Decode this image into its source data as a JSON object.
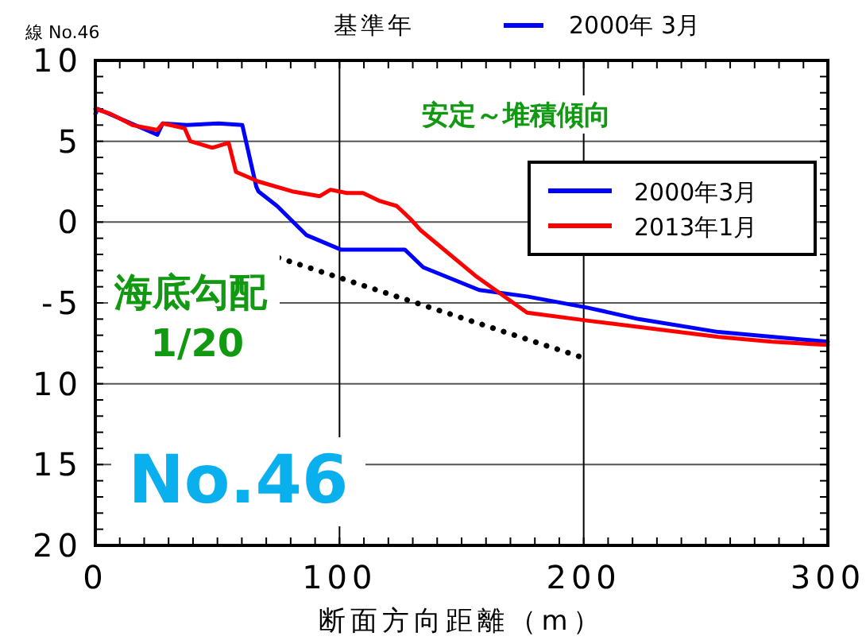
{
  "chart_data": {
    "type": "line",
    "title": "基準年",
    "subtitle": "2000年 3月",
    "xlabel": "断面方向距離（m）",
    "xlim": [
      0,
      300
    ],
    "xticks": [
      0,
      100,
      200,
      300
    ],
    "ylim": [
      -20,
      10
    ],
    "yticks": [
      10,
      5,
      0,
      -5,
      {
        "value": -10,
        "label": "10"
      },
      {
        "value": -15,
        "label": "15"
      },
      {
        "value": -20,
        "label": "20"
      }
    ],
    "grid": true,
    "legend": "top right",
    "marker": "none",
    "annotations": [
      "線 No.46",
      "安定～堆積傾向",
      "海底勾配 1/20",
      "No.46"
    ],
    "series": [
      {
        "name": "2000年3月",
        "color": "#0000ff",
        "line_style": "solid",
        "x": [
          0,
          1,
          25.4,
          27.6,
          37.4,
          50.5,
          60.2,
          65.9,
          66.8,
          74.4,
          86.4,
          100.5,
          126.7,
          134.3,
          157.2,
          176.8,
          201.8,
          222.5,
          255.2,
          300
        ],
        "values": [
          6.7,
          7.0,
          5.4,
          6.1,
          6.0,
          6.1,
          6.0,
          2.2,
          1.9,
          1.0,
          -0.8,
          -1.7,
          -1.7,
          -2.8,
          -4.2,
          -4.6,
          -5.3,
          -6.0,
          -6.8,
          -7.4
        ]
      },
      {
        "name": "2013年1月",
        "color": "#ff0000",
        "line_style": "solid",
        "x": [
          0,
          6.2,
          15.2,
          25.4,
          27.6,
          36.6,
          38.9,
          47.9,
          54.6,
          57.6,
          67,
          80.6,
          91.8,
          96.3,
          103,
          109.6,
          116.6,
          123.4,
          129,
          133.2,
          155.5,
          176.8,
          201.8,
          255.2,
          277,
          300
        ],
        "values": [
          7.0,
          6.7,
          6.0,
          5.7,
          6.1,
          5.8,
          5.0,
          4.6,
          4.9,
          3.1,
          2.5,
          1.9,
          1.6,
          2.0,
          1.8,
          1.8,
          1.3,
          1.0,
          0.2,
          -0.5,
          -3.3,
          -5.6,
          -6.1,
          -7.1,
          -7.4,
          -7.6
        ]
      },
      {
        "color": "#000000",
        "line_style": "dotted",
        "x": [
          75,
          198
        ],
        "values": [
          -2.2,
          -8.3
        ]
      }
    ]
  }
}
